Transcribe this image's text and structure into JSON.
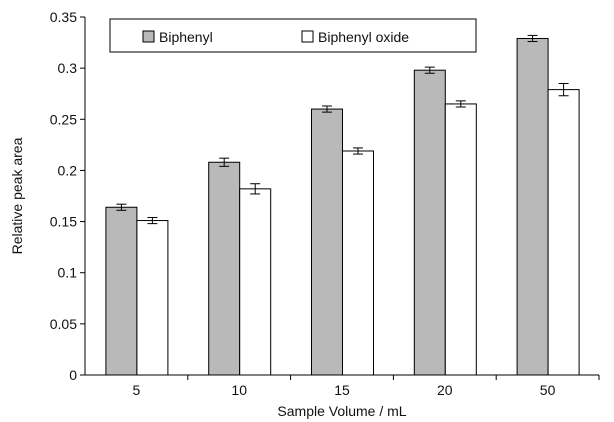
{
  "colors": {
    "biphenyl": "#b9b9b9",
    "biphenyl_oxide": "#ffffff",
    "axis": "#000000"
  },
  "chart_data": {
    "type": "bar",
    "xlabel": "Sample Volume / mL",
    "ylabel": "Relative peak area",
    "categories": [
      "5",
      "10",
      "15",
      "20",
      "50"
    ],
    "ylim": [
      0,
      0.35
    ],
    "yticks": [
      "0",
      "0.05",
      "0.1",
      "0.15",
      "0.2",
      "0.25",
      "0.3",
      "0.35"
    ],
    "grid": false,
    "legend_position": "top",
    "series": [
      {
        "name": "Biphenyl",
        "values": [
          0.164,
          0.208,
          0.26,
          0.298,
          0.329
        ],
        "errors": [
          0.003,
          0.004,
          0.003,
          0.003,
          0.003
        ]
      },
      {
        "name": "Biphenyl oxide",
        "values": [
          0.151,
          0.182,
          0.219,
          0.265,
          0.279
        ],
        "errors": [
          0.003,
          0.005,
          0.003,
          0.003,
          0.006
        ]
      }
    ]
  }
}
